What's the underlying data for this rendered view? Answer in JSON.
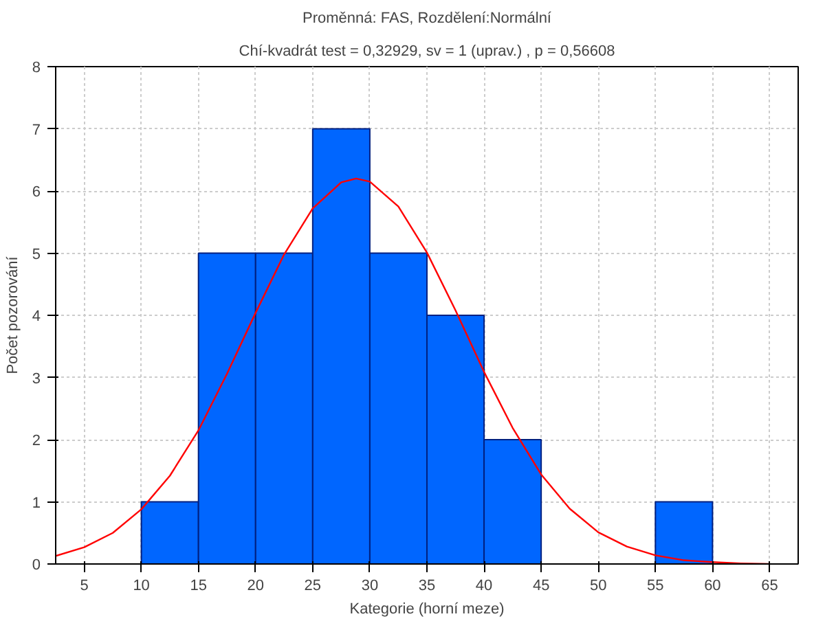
{
  "chart_data": [
    {
      "type": "histogram",
      "title": "Proměnná: FAS, Rozdělení:Normální",
      "subtitle": "Chí-kvadrát test = 0,32929, sv = 1 (uprav.) , p = 0,56608",
      "xlabel": "Kategorie (horní meze)",
      "ylabel": "Počet pozorování",
      "bins": [
        10,
        15,
        20,
        25,
        30,
        35,
        40,
        45,
        50,
        55,
        60
      ],
      "values": [
        1,
        5,
        5,
        7,
        5,
        4,
        2,
        0,
        0,
        1
      ],
      "color": "#0066ff",
      "series": [
        {
          "type": "line",
          "color": "#ff0000",
          "x": [
            2.5,
            5,
            7.5,
            10,
            12.5,
            15,
            17.5,
            20,
            22.5,
            25,
            27.5,
            28.8,
            30,
            32.5,
            35,
            37.5,
            40,
            42.5,
            45,
            47.5,
            50,
            52.5,
            55,
            57.5,
            60,
            62.5,
            65
          ],
          "values": [
            0.13,
            0.27,
            0.5,
            0.88,
            1.42,
            2.15,
            3.06,
            4.04,
            4.98,
            5.72,
            6.14,
            6.2,
            6.15,
            5.75,
            5.01,
            4.08,
            3.09,
            2.19,
            1.44,
            0.89,
            0.51,
            0.28,
            0.14,
            0.06,
            0.03,
            0.01,
            0.0
          ]
        }
      ],
      "xlim": [
        2.5,
        67.5
      ],
      "xticks": [
        5,
        10,
        15,
        20,
        25,
        30,
        35,
        40,
        45,
        50,
        55,
        60,
        65
      ],
      "ylim": [
        0,
        8
      ],
      "yticks": [
        0,
        1,
        2,
        3,
        4,
        5,
        6,
        7,
        8
      ],
      "grid": true
    }
  ]
}
